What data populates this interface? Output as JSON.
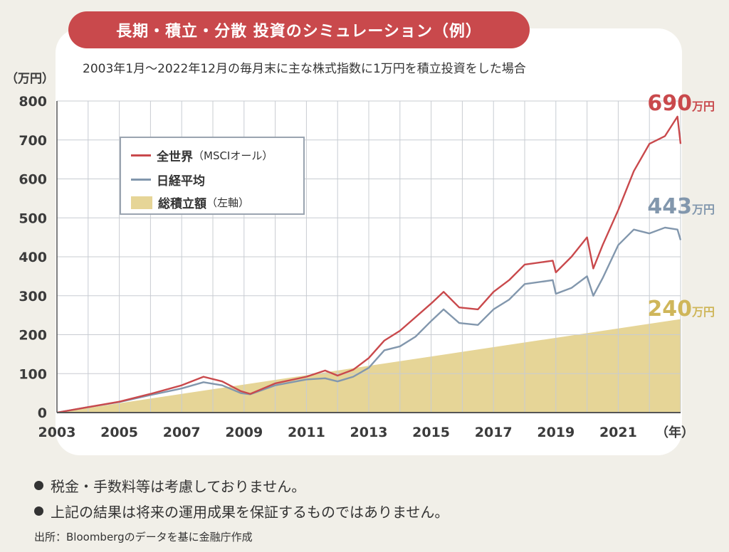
{
  "header": {
    "title": "長期・積立・分散 投資のシミュレーション（例）",
    "subtitle": "2003年1月〜2022年12月の毎月末に主な株式指数に1万円を積立投資をした場合"
  },
  "notes": [
    "税金・手数料等は考慮しておりません。",
    "上記の結果は将来の運用成果を保証するものではありません。"
  ],
  "source": "出所：Bloombergのデータを基に金融庁作成",
  "colors": {
    "world": "#c9494c",
    "nikkei": "#8297ad",
    "total": "#e6d597"
  },
  "chart_data": {
    "type": "line",
    "ylabel": "（万円）",
    "xlabel": "（年）",
    "ylim": [
      0,
      800
    ],
    "yticks": [
      0,
      100,
      200,
      300,
      400,
      500,
      600,
      700,
      800
    ],
    "xticks": [
      "2003",
      "2005",
      "2007",
      "2009",
      "2011",
      "2013",
      "2015",
      "2017",
      "2019",
      "2021"
    ],
    "grid": true,
    "legend_position": "top-left",
    "series": [
      {
        "name": "全世界",
        "name_suffix": "（MSCIオール）",
        "color_key": "world",
        "points": [
          [
            2003.0,
            0
          ],
          [
            2004.0,
            14
          ],
          [
            2005.0,
            28
          ],
          [
            2006.0,
            48
          ],
          [
            2007.0,
            70
          ],
          [
            2007.7,
            92
          ],
          [
            2008.3,
            80
          ],
          [
            2008.9,
            55
          ],
          [
            2009.2,
            48
          ],
          [
            2010.0,
            75
          ],
          [
            2011.0,
            92
          ],
          [
            2011.6,
            108
          ],
          [
            2012.0,
            95
          ],
          [
            2012.5,
            110
          ],
          [
            2013.0,
            140
          ],
          [
            2013.5,
            185
          ],
          [
            2014.0,
            210
          ],
          [
            2014.5,
            245
          ],
          [
            2015.0,
            280
          ],
          [
            2015.4,
            310
          ],
          [
            2015.9,
            270
          ],
          [
            2016.5,
            265
          ],
          [
            2017.0,
            310
          ],
          [
            2017.5,
            340
          ],
          [
            2018.0,
            380
          ],
          [
            2018.9,
            390
          ],
          [
            2019.0,
            360
          ],
          [
            2019.5,
            400
          ],
          [
            2020.0,
            450
          ],
          [
            2020.2,
            370
          ],
          [
            2020.5,
            430
          ],
          [
            2021.0,
            520
          ],
          [
            2021.5,
            620
          ],
          [
            2022.0,
            690
          ],
          [
            2022.5,
            710
          ],
          [
            2022.9,
            760
          ],
          [
            2023.0,
            690
          ]
        ],
        "end_label": "690"
      },
      {
        "name": "日経平均",
        "name_suffix": "",
        "color_key": "nikkei",
        "points": [
          [
            2003.0,
            0
          ],
          [
            2004.0,
            14
          ],
          [
            2005.0,
            27
          ],
          [
            2006.0,
            45
          ],
          [
            2007.0,
            62
          ],
          [
            2007.7,
            78
          ],
          [
            2008.3,
            70
          ],
          [
            2008.9,
            50
          ],
          [
            2009.2,
            47
          ],
          [
            2010.0,
            70
          ],
          [
            2011.0,
            85
          ],
          [
            2011.6,
            88
          ],
          [
            2012.0,
            80
          ],
          [
            2012.5,
            92
          ],
          [
            2013.0,
            115
          ],
          [
            2013.5,
            160
          ],
          [
            2014.0,
            170
          ],
          [
            2014.5,
            195
          ],
          [
            2015.0,
            235
          ],
          [
            2015.4,
            265
          ],
          [
            2015.9,
            230
          ],
          [
            2016.5,
            225
          ],
          [
            2017.0,
            265
          ],
          [
            2017.5,
            290
          ],
          [
            2018.0,
            330
          ],
          [
            2018.9,
            340
          ],
          [
            2019.0,
            305
          ],
          [
            2019.5,
            320
          ],
          [
            2020.0,
            350
          ],
          [
            2020.2,
            300
          ],
          [
            2020.5,
            345
          ],
          [
            2021.0,
            430
          ],
          [
            2021.5,
            470
          ],
          [
            2022.0,
            460
          ],
          [
            2022.5,
            475
          ],
          [
            2022.9,
            470
          ],
          [
            2023.0,
            443
          ]
        ],
        "end_label": "443"
      },
      {
        "name": "総積立額",
        "name_suffix": "（左軸）",
        "color_key": "total",
        "type": "area",
        "points": [
          [
            2003.0,
            0
          ],
          [
            2023.0,
            240
          ]
        ],
        "end_label": "240"
      }
    ],
    "end_label_unit": "万円"
  }
}
